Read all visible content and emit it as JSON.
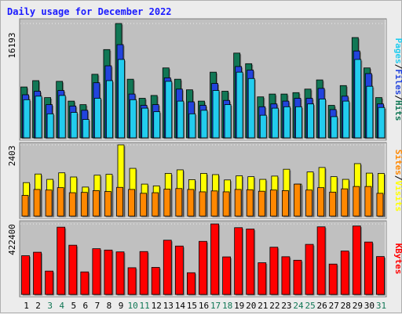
{
  "title": "Daily usage for December 2022",
  "chart_data": [
    {
      "type": "bar",
      "panel": "hits-files-pages",
      "categories": [
        "1",
        "2",
        "3",
        "4",
        "5",
        "6",
        "7",
        "8",
        "9",
        "10",
        "11",
        "12",
        "13",
        "14",
        "15",
        "16",
        "17",
        "18",
        "19",
        "20",
        "21",
        "22",
        "23",
        "24",
        "25",
        "26",
        "27",
        "28",
        "29",
        "30",
        "31"
      ],
      "weekend_days": [
        "3",
        "4",
        "10",
        "11",
        "17",
        "18",
        "24",
        "25",
        "31"
      ],
      "max_label": "16193",
      "ymax": 16193,
      "right_label_parts": [
        "Pages",
        "/",
        "Files",
        "/",
        "Hits"
      ],
      "series": [
        {
          "name": "Hits",
          "color": "#117755",
          "values": [
            7200,
            8100,
            5700,
            8000,
            5200,
            4700,
            9000,
            12500,
            16193,
            8300,
            5600,
            6000,
            9900,
            8300,
            6800,
            5200,
            9300,
            6600,
            12000,
            10500,
            5800,
            6200,
            6200,
            6400,
            6900,
            8200,
            4600,
            7400,
            14200,
            9900,
            5700
          ]
        },
        {
          "name": "Files",
          "color": "#2244dd",
          "values": [
            6100,
            6600,
            4700,
            6700,
            4500,
            3900,
            7800,
            10200,
            13200,
            6200,
            4600,
            4700,
            8500,
            6900,
            5100,
            4600,
            7700,
            5300,
            10100,
            9600,
            4400,
            4800,
            5200,
            5600,
            5600,
            7000,
            4000,
            5900,
            12300,
            9100,
            4800
          ]
        },
        {
          "name": "Pages",
          "color": "#22ccee",
          "values": [
            5400,
            5900,
            3400,
            6000,
            3600,
            2600,
            5600,
            8100,
            11100,
            5400,
            4200,
            3700,
            8000,
            5200,
            3400,
            3900,
            6700,
            4700,
            9300,
            8400,
            3200,
            4200,
            4400,
            4400,
            4800,
            5500,
            3000,
            5200,
            11100,
            7300,
            4300
          ]
        }
      ]
    },
    {
      "type": "bar",
      "panel": "visits-sites",
      "categories": [
        "1",
        "2",
        "3",
        "4",
        "5",
        "6",
        "7",
        "8",
        "9",
        "10",
        "11",
        "12",
        "13",
        "14",
        "15",
        "16",
        "17",
        "18",
        "19",
        "20",
        "21",
        "22",
        "23",
        "24",
        "25",
        "26",
        "27",
        "28",
        "29",
        "30",
        "31"
      ],
      "max_label": "2403",
      "ymax": 2403,
      "right_label_parts": [
        "Sites",
        "/",
        "Visits"
      ],
      "series": [
        {
          "name": "Visits",
          "color": "#ffff00",
          "values": [
            1130,
            1420,
            1240,
            1460,
            1320,
            980,
            1380,
            1410,
            2403,
            1610,
            1080,
            1020,
            1440,
            1560,
            1230,
            1440,
            1400,
            1220,
            1360,
            1330,
            1240,
            1350,
            1580,
            1080,
            1490,
            1640,
            1330,
            1240,
            1770,
            1450,
            1440
          ]
        },
        {
          "name": "Sites",
          "color": "#ff8800",
          "values": [
            700,
            900,
            880,
            960,
            790,
            800,
            860,
            830,
            970,
            900,
            770,
            790,
            910,
            930,
            900,
            820,
            850,
            820,
            900,
            890,
            840,
            880,
            860,
            1080,
            880,
            960,
            810,
            920,
            1000,
            1000,
            770
          ]
        }
      ]
    },
    {
      "type": "bar",
      "panel": "kbytes",
      "categories": [
        "1",
        "2",
        "3",
        "4",
        "5",
        "6",
        "7",
        "8",
        "9",
        "10",
        "11",
        "12",
        "13",
        "14",
        "15",
        "16",
        "17",
        "18",
        "19",
        "20",
        "21",
        "22",
        "23",
        "24",
        "25",
        "26",
        "27",
        "28",
        "29",
        "30",
        "31"
      ],
      "max_label": "422400",
      "ymax": 422400,
      "right_label_parts": [
        "KBytes"
      ],
      "series": [
        {
          "name": "KBytes",
          "color": "#ff0000",
          "values": [
            232000,
            253000,
            140000,
            403000,
            295000,
            135000,
            274000,
            266000,
            255000,
            160000,
            257000,
            162000,
            325000,
            290000,
            130000,
            318000,
            422400,
            225000,
            400000,
            392000,
            190000,
            283000,
            226000,
            205000,
            300000,
            405000,
            182000,
            260000,
            410000,
            314000,
            227000
          ]
        }
      ]
    }
  ],
  "colors": {
    "panel_bg": "#c0c0c0",
    "frame_bg": "#ececec",
    "title": "#1a1aff",
    "label_hits": "#117755",
    "label_files": "#2244dd",
    "label_pages": "#22ccee",
    "label_visits": "#ffff00",
    "label_sites": "#ff8800",
    "label_kbytes": "#ff0000",
    "weekend_day": "#117755",
    "weekday": "#000000"
  }
}
